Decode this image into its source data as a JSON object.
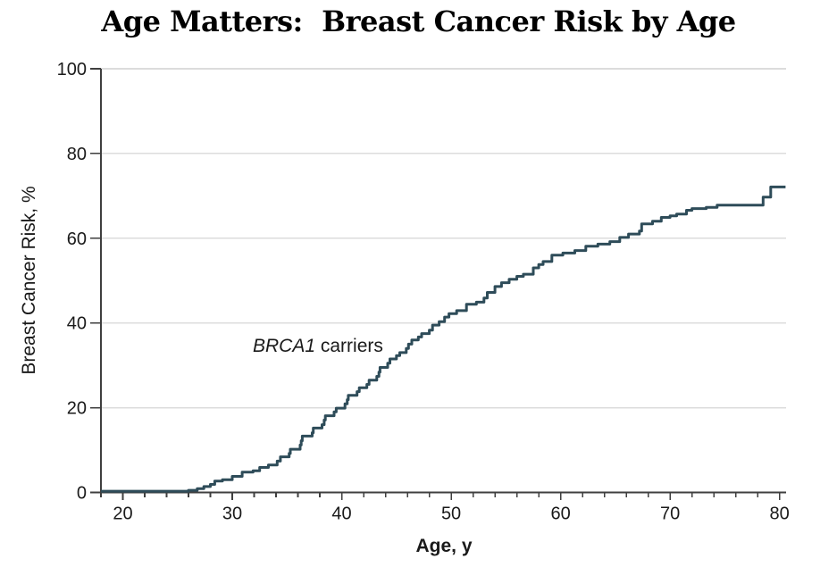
{
  "title": "Age Matters:  Breast Cancer Risk by Age",
  "colors": {
    "curve": "#2e4c59",
    "axis": "#3f3f3f",
    "grid": "#dcdcdc",
    "text": "#1a1a1a",
    "background": "#ffffff"
  },
  "chart_data": {
    "type": "line",
    "subtype": "step-after",
    "title": "Age Matters:  Breast Cancer Risk by Age",
    "xlabel": "Age, y",
    "ylabel": "Breast Cancer Risk, %",
    "xlim": [
      18,
      80.6
    ],
    "ylim": [
      0,
      100
    ],
    "x_ticks_major": [
      20,
      30,
      40,
      50,
      60,
      70,
      80
    ],
    "x_tick_minor_step": 2,
    "y_ticks": [
      0,
      20,
      40,
      60,
      80,
      100
    ],
    "grid": "horizontal",
    "legend_position": "none",
    "series": [
      {
        "name": "BRCA1 carriers",
        "label_parts": {
          "italic": "BRCA1",
          "regular": " carriers"
        },
        "color": "#2e4c59",
        "points": [
          [
            18,
            0.3
          ],
          [
            26,
            0.5
          ],
          [
            26.8,
            0.9
          ],
          [
            27.4,
            1.4
          ],
          [
            28,
            1.9
          ],
          [
            28.4,
            2.7
          ],
          [
            29.1,
            3
          ],
          [
            30,
            3.8
          ],
          [
            30.9,
            4.8
          ],
          [
            31.9,
            5.1
          ],
          [
            32.5,
            5.9
          ],
          [
            33.3,
            6.5
          ],
          [
            34.1,
            7.4
          ],
          [
            34.4,
            8.4
          ],
          [
            35.2,
            9.2
          ],
          [
            35.3,
            10.2
          ],
          [
            36.2,
            11.2
          ],
          [
            36.3,
            12.2
          ],
          [
            36.4,
            13.3
          ],
          [
            37.3,
            14.1
          ],
          [
            37.4,
            15.2
          ],
          [
            38.2,
            16
          ],
          [
            38.4,
            17.1
          ],
          [
            38.5,
            18.1
          ],
          [
            39.3,
            19
          ],
          [
            39.5,
            19.9
          ],
          [
            40.3,
            20.9
          ],
          [
            40.5,
            21.9
          ],
          [
            40.6,
            22.9
          ],
          [
            41.4,
            23.8
          ],
          [
            41.6,
            24.7
          ],
          [
            42.3,
            25.5
          ],
          [
            42.5,
            26.5
          ],
          [
            43.2,
            27.4
          ],
          [
            43.4,
            28.4
          ],
          [
            43.5,
            29.5
          ],
          [
            44.2,
            30.5
          ],
          [
            44.4,
            31.5
          ],
          [
            45,
            32.3
          ],
          [
            45.3,
            33
          ],
          [
            45.9,
            34
          ],
          [
            46.1,
            35
          ],
          [
            46.4,
            36
          ],
          [
            47,
            36.7
          ],
          [
            47.3,
            37.5
          ],
          [
            48,
            38.3
          ],
          [
            48.3,
            39.5
          ],
          [
            48.9,
            40.3
          ],
          [
            49.4,
            41.4
          ],
          [
            49.8,
            42.2
          ],
          [
            50.5,
            42.9
          ],
          [
            51.4,
            44.4
          ],
          [
            52.3,
            44.9
          ],
          [
            53,
            45.9
          ],
          [
            53.3,
            47.2
          ],
          [
            54,
            48.6
          ],
          [
            54.6,
            49.5
          ],
          [
            55.3,
            50.3
          ],
          [
            56,
            51
          ],
          [
            56.6,
            51.5
          ],
          [
            57.5,
            53
          ],
          [
            58,
            53.8
          ],
          [
            58.4,
            54.5
          ],
          [
            59.2,
            56
          ],
          [
            60.2,
            56.5
          ],
          [
            61.3,
            57.1
          ],
          [
            62.3,
            58.1
          ],
          [
            63.4,
            58.6
          ],
          [
            64.5,
            59.2
          ],
          [
            65.4,
            60.2
          ],
          [
            66.2,
            61
          ],
          [
            67.2,
            61.7
          ],
          [
            67.4,
            63.4
          ],
          [
            68.4,
            64
          ],
          [
            69.2,
            64.9
          ],
          [
            70,
            65.3
          ],
          [
            70.6,
            65.7
          ],
          [
            71.5,
            66.6
          ],
          [
            72,
            67
          ],
          [
            73.3,
            67.3
          ],
          [
            74.3,
            67.8
          ],
          [
            78.5,
            69.7
          ],
          [
            79.2,
            72.1
          ],
          [
            80.55,
            72.1
          ]
        ]
      }
    ]
  }
}
